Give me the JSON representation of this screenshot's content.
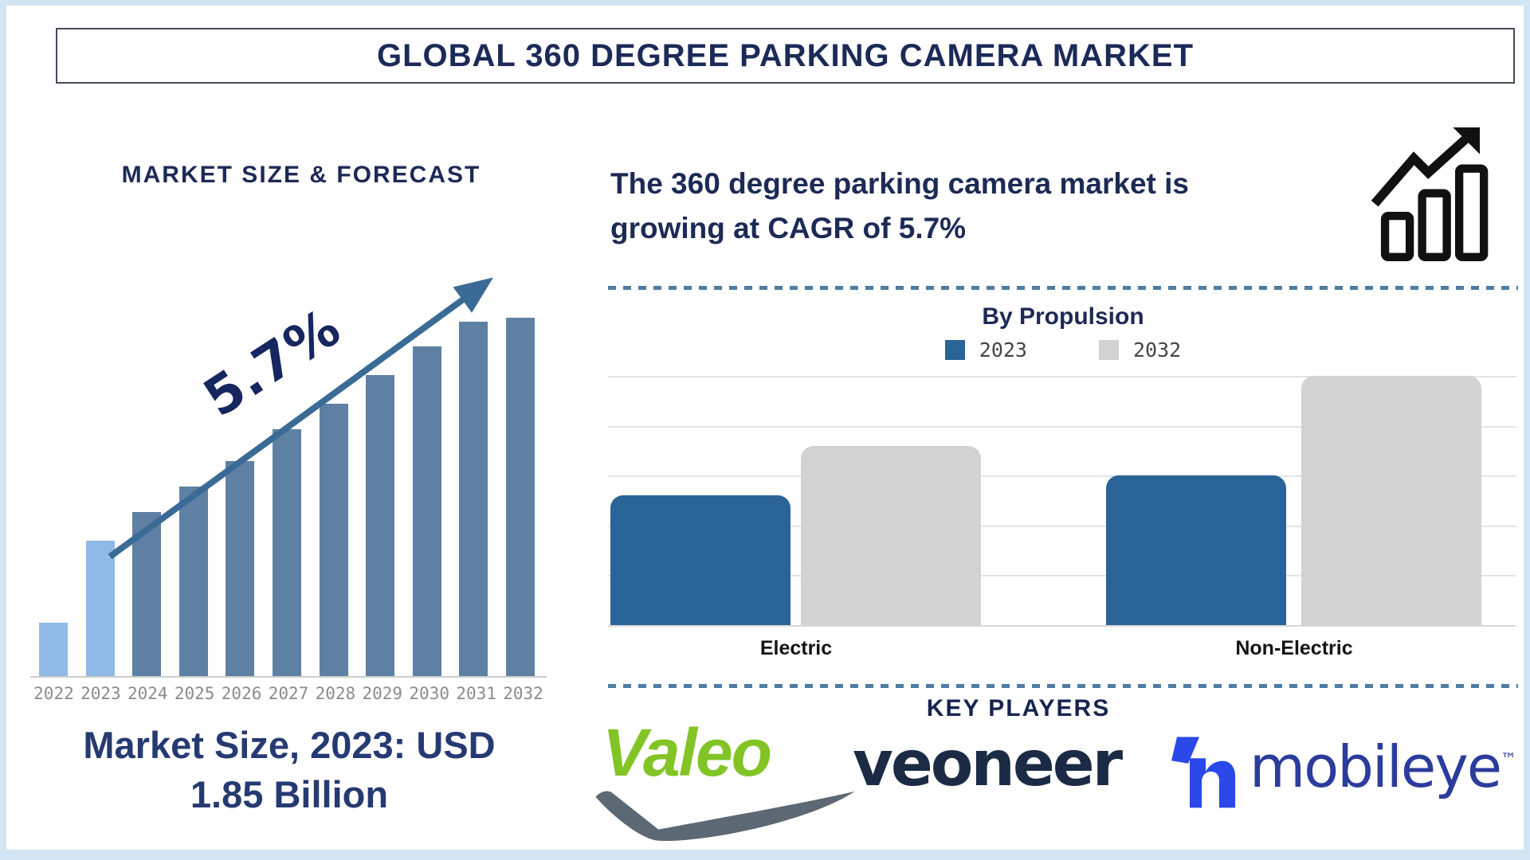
{
  "frame": {
    "background": "#d3e5f3"
  },
  "title_bar": {
    "text": "GLOBAL 360 DEGREE PARKING CAMERA MARKET",
    "text_color": "#1c2a58",
    "border_color": "#454b59"
  },
  "left_panel": {
    "section_title": "MARKET SIZE & FORECAST",
    "cagr_label": "5.7%",
    "caption_line1": "Market Size, 2023: USD",
    "caption_line2": "1.85 Billion"
  },
  "right_panel": {
    "headline_line1": "The 360 degree parking camera market is",
    "headline_line2": "growing at CAGR of 5.7%",
    "growth_icon": "bar-chart-with-rising-arrow-icon",
    "divider_color": "#4e7ca4",
    "propulsion": {
      "title": "By Propulsion",
      "legend": [
        {
          "label": "2023",
          "color": "#2a6496"
        },
        {
          "label": "2032",
          "color": "#d2d2d2"
        }
      ],
      "categories": [
        "Electric",
        "Non-Electric"
      ]
    },
    "key_players_title": "KEY PLAYERS",
    "logos": [
      {
        "name": "Valeo",
        "text": "Valeo",
        "color": "#82c426",
        "swoosh_color": "#5c6873"
      },
      {
        "name": "Veoneer",
        "text": "veoneer",
        "color": "#1b2a45"
      },
      {
        "name": "Mobileye",
        "text": "mobileye",
        "trademark": "™",
        "text_color": "#2c3c9c",
        "icon_color": "#2b49e8"
      }
    ]
  },
  "chart_data": [
    {
      "id": "market_size_forecast",
      "type": "bar",
      "title": "MARKET SIZE & FORECAST",
      "categories": [
        "2022",
        "2023",
        "2024",
        "2025",
        "2026",
        "2027",
        "2028",
        "2029",
        "2030",
        "2031",
        "2032"
      ],
      "values_relative_pct": [
        15,
        38,
        46,
        53,
        60,
        69,
        76,
        84,
        92,
        99,
        100
      ],
      "value_axis_visible": false,
      "highlight_years": [
        "2022",
        "2023"
      ],
      "highlight_color": "#8fb9e6",
      "bar_color": "#5e81a3",
      "trend_annotation": "5.7%",
      "trend_arrow_color": "#3a6b96",
      "footnote": "Market Size, 2023: USD 1.85 Billion",
      "xlabel": "",
      "ylabel": ""
    },
    {
      "id": "by_propulsion",
      "type": "bar",
      "grouped": true,
      "title": "By Propulsion",
      "categories": [
        "Electric",
        "Non-Electric"
      ],
      "series": [
        {
          "name": "2023",
          "color": "#2a6496",
          "values": [
            2.6,
            3.0
          ]
        },
        {
          "name": "2032",
          "color": "#d2d2d2",
          "values": [
            3.6,
            5.0
          ]
        }
      ],
      "value_units": "relative height (value axis unlabeled in source)",
      "ylim": [
        0,
        5
      ],
      "gridlines": true,
      "legend_position": "top center",
      "xlabel": "",
      "ylabel": ""
    }
  ]
}
